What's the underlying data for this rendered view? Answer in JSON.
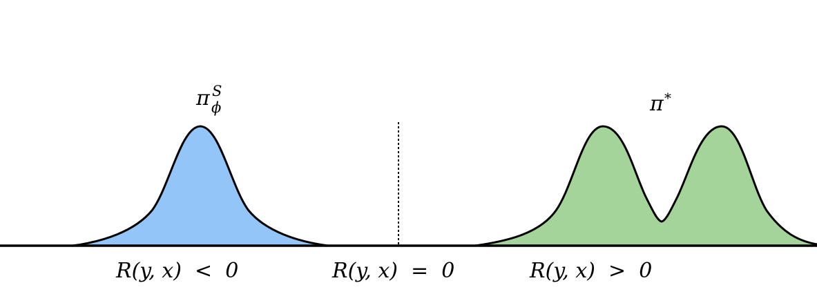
{
  "colors": {
    "blue_fill": "#94c5f8",
    "green_fill": "#a5d49a",
    "stroke": "#000000"
  },
  "labels": {
    "left_dist": {
      "base": "π",
      "sub": "ϕ",
      "sup": "S"
    },
    "right_dist": {
      "base": "π",
      "sup": "*"
    },
    "region_negative": "R(y, x)  <  0",
    "region_zero": "R(y, x)  =  0",
    "region_positive": "R(y, x)  >  0"
  }
}
